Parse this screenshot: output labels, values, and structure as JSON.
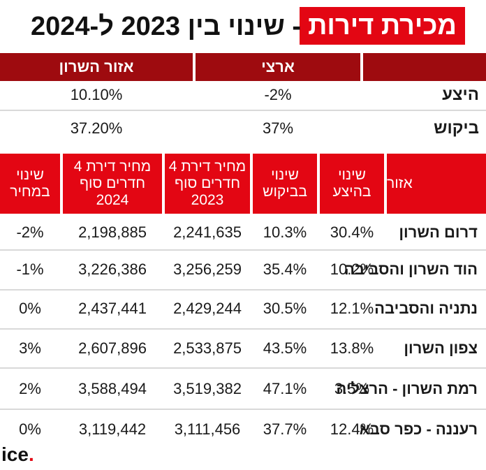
{
  "title": {
    "highlight": "מכירת דירות",
    "rest": "- שינוי בין 2023 ל-2024"
  },
  "summary": {
    "headers": {
      "national": "ארצי",
      "sharon": "אזור השרון"
    },
    "rows": [
      {
        "label": "היצע",
        "national": "-2%",
        "sharon": "10.10%"
      },
      {
        "label": "ביקוש",
        "national": "37%",
        "sharon": "37.20%"
      }
    ]
  },
  "table": {
    "headers": {
      "region": "אזור",
      "supply_change": "שינוי בהיצע",
      "demand_change": "שינוי בביקוש",
      "price_2023": "מחיר דירת 4 חדרים סוף 2023",
      "price_2024": "מחיר דירת 4 חדרים סוף 2024",
      "price_change": "שינוי במחיר"
    },
    "rows": [
      {
        "region": "דרום השרון",
        "supply": "30.4%",
        "demand": "10.3%",
        "p2023": "2,241,635",
        "p2024": "2,198,885",
        "change": "-2%"
      },
      {
        "region": "הוד השרון והסביבה",
        "supply": "10.2%",
        "demand": "35.4%",
        "p2023": "3,256,259",
        "p2024": "3,226,386",
        "change": "-1%"
      },
      {
        "region": "נתניה והסביבה",
        "supply": "12.1%",
        "demand": "30.5%",
        "p2023": "2,429,244",
        "p2024": "2,437,441",
        "change": "0%"
      },
      {
        "region": "צפון השרון",
        "supply": "13.8%",
        "demand": "43.5%",
        "p2023": "2,533,875",
        "p2024": "2,607,896",
        "change": "3%"
      },
      {
        "region": "רמת השרון - הרצליה",
        "supply": "3.5%",
        "demand": "47.1%",
        "p2023": "3,519,382",
        "p2024": "3,588,494",
        "change": "2%"
      },
      {
        "region": "רעננה - כפר סבא",
        "supply": "12.4%",
        "demand": "37.7%",
        "p2023": "3,111,456",
        "p2024": "3,119,442",
        "change": "0%"
      }
    ]
  },
  "logo": {
    "text": "ice",
    "dot": "."
  },
  "colors": {
    "red": "#e30613",
    "dark_red": "#9e0b0f"
  }
}
